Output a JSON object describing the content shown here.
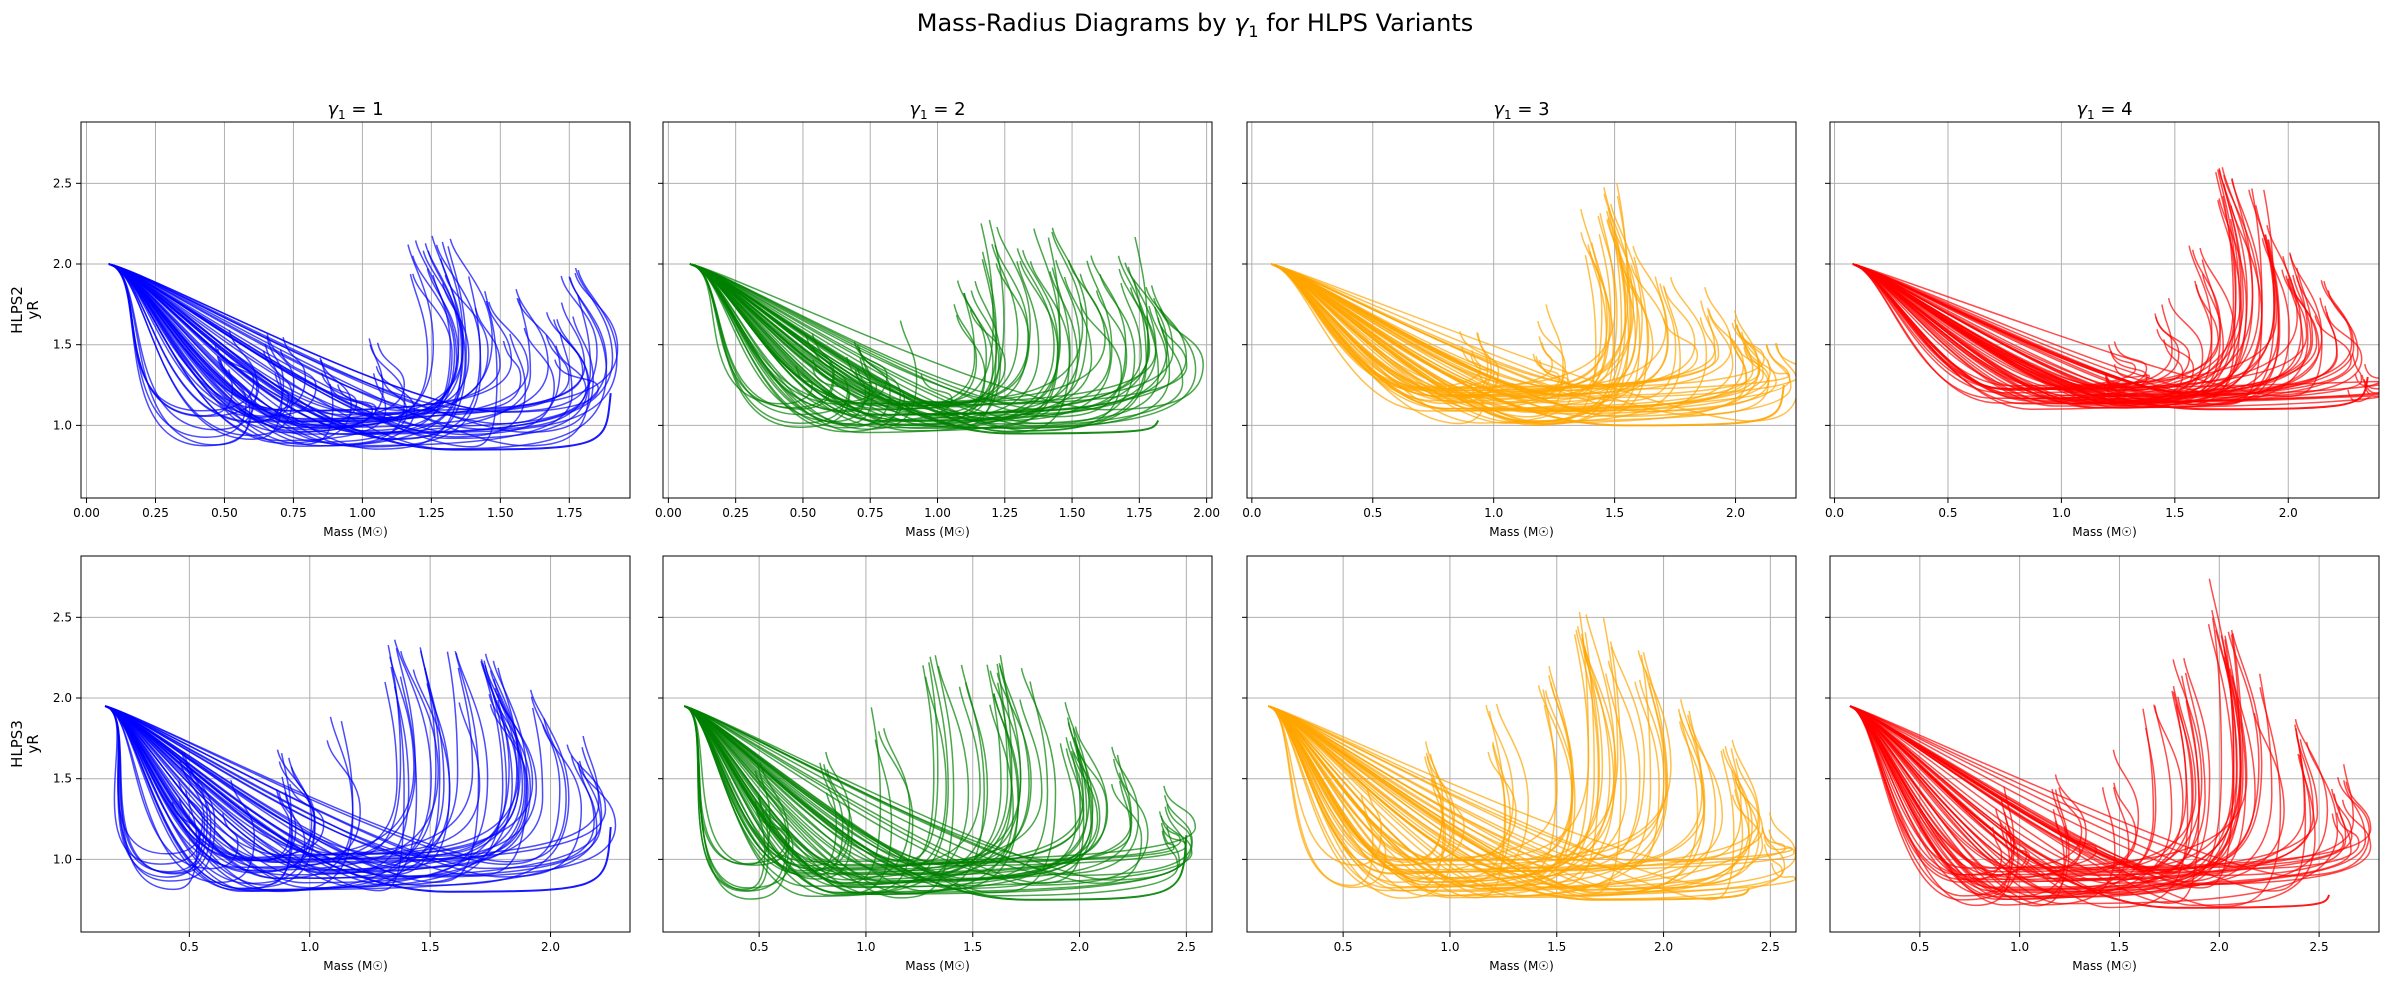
{
  "figure": {
    "suptitle_prefix": "Mass-Radius Diagrams by ",
    "suptitle_symbol": "γ",
    "suptitle_sub": "1",
    "suptitle_suffix": " for HLPS Variants"
  },
  "row_labels": [
    {
      "variant": "HLPS2",
      "ylabel": "yR"
    },
    {
      "variant": "HLPS3",
      "ylabel": "yR"
    }
  ],
  "col_titles": [
    {
      "symbol": "γ",
      "sub": "1",
      "rest": " = 1"
    },
    {
      "symbol": "γ",
      "sub": "1",
      "rest": " = 2"
    },
    {
      "symbol": "γ",
      "sub": "1",
      "rest": " = 3"
    },
    {
      "symbol": "γ",
      "sub": "1",
      "rest": " = 4"
    }
  ],
  "chart_data": [
    {
      "type": "line",
      "variant": "HLPS2",
      "gamma1": 1,
      "xlabel": "Mass (M☉)",
      "ylabel": "yR",
      "xlim": [
        -0.02,
        1.97
      ],
      "ylim": [
        0.55,
        2.88
      ],
      "xticks": [
        0,
        0.25,
        0.5,
        0.75,
        1,
        1.25,
        1.5,
        1.75
      ],
      "xticklabels": [
        "0.00",
        "0.25",
        "0.50",
        "0.75",
        "1.00",
        "1.25",
        "1.50",
        "1.75"
      ],
      "yticks": [
        1,
        1.5,
        2,
        2.5
      ],
      "yticklabels": [
        "1.0",
        "1.5",
        "2.0",
        "2.5"
      ],
      "grid": true,
      "color": "#0000ff",
      "start": [
        0.08,
        2.0
      ],
      "min_radius_range": [
        0.85,
        1.1
      ],
      "peak_masses": [
        0.5,
        0.68,
        0.88,
        1.05,
        1.2,
        1.28,
        1.42,
        1.55,
        1.68,
        1.75
      ],
      "peak_radii": [
        1.65,
        1.57,
        1.55,
        1.6,
        2.2,
        2.2,
        1.95,
        1.85,
        1.75,
        2.0
      ],
      "end_point": [
        1.9,
        1.2
      ]
    },
    {
      "type": "line",
      "variant": "HLPS2",
      "gamma1": 2,
      "xlabel": "Mass (M☉)",
      "ylabel": "yR",
      "xlim": [
        -0.02,
        2.02
      ],
      "ylim": [
        0.55,
        2.88
      ],
      "xticks": [
        0,
        0.25,
        0.5,
        0.75,
        1,
        1.25,
        1.5,
        1.75,
        2
      ],
      "xticklabels": [
        "0.00",
        "0.25",
        "0.50",
        "0.75",
        "1.00",
        "1.25",
        "1.50",
        "1.75",
        "2.00"
      ],
      "yticks": [
        1,
        1.5,
        2,
        2.5
      ],
      "yticklabels": [
        "1.0",
        "1.5",
        "2.0",
        "2.5"
      ],
      "grid": true,
      "color": "#008000",
      "start": [
        0.08,
        2.0
      ],
      "min_radius_range": [
        0.95,
        1.15
      ],
      "peak_masses": [
        0.5,
        0.7,
        0.9,
        1.1,
        1.2,
        1.32,
        1.45,
        1.57,
        1.7,
        1.8
      ],
      "peak_radii": [
        1.6,
        1.6,
        1.65,
        1.95,
        2.3,
        2.3,
        2.25,
        2.1,
        2.2,
        1.9
      ],
      "end_point": [
        1.82,
        1.03
      ]
    },
    {
      "type": "line",
      "variant": "HLPS2",
      "gamma1": 3,
      "xlabel": "Mass (M☉)",
      "ylabel": "yR",
      "xlim": [
        -0.02,
        2.25
      ],
      "ylim": [
        0.55,
        2.88
      ],
      "xticks": [
        0,
        0.5,
        1,
        1.5,
        2
      ],
      "xticklabels": [
        "0.0",
        "0.5",
        "1.0",
        "1.5",
        "2.0"
      ],
      "yticks": [
        1,
        1.5,
        2,
        2.5
      ],
      "yticklabels": [
        "1.0",
        "1.5",
        "2.0",
        "2.5"
      ],
      "grid": true,
      "color": "#ffa500",
      "start": [
        0.08,
        2.0
      ],
      "min_radius_range": [
        1.0,
        1.25
      ],
      "peak_masses": [
        0.9,
        1.2,
        1.4,
        1.48,
        1.55,
        1.7,
        1.85,
        2.0,
        2.15
      ],
      "peak_radii": [
        1.6,
        1.75,
        2.4,
        2.5,
        2.3,
        2.0,
        1.9,
        1.8,
        1.7
      ],
      "end_point": [
        2.2,
        1.25
      ]
    },
    {
      "type": "line",
      "variant": "HLPS2",
      "gamma1": 4,
      "xlabel": "Mass (M☉)",
      "ylabel": "yR",
      "xlim": [
        -0.02,
        2.4
      ],
      "ylim": [
        0.55,
        2.88
      ],
      "xticks": [
        0,
        0.5,
        1,
        1.5,
        2
      ],
      "xticklabels": [
        "0.0",
        "0.5",
        "1.0",
        "1.5",
        "2.0"
      ],
      "yticks": [
        1,
        1.5,
        2,
        2.5
      ],
      "yticklabels": [
        "1.0",
        "1.5",
        "2.0",
        "2.5"
      ],
      "grid": true,
      "color": "#ff0000",
      "start": [
        0.08,
        2.0
      ],
      "min_radius_range": [
        1.1,
        1.25
      ],
      "peak_masses": [
        1.2,
        1.45,
        1.6,
        1.72,
        1.8,
        1.88,
        2.0,
        2.15,
        2.3
      ],
      "peak_radii": [
        1.6,
        1.8,
        2.2,
        2.6,
        2.7,
        2.5,
        2.2,
        1.9,
        1.45
      ],
      "end_point": [
        2.35,
        1.3
      ]
    },
    {
      "type": "line",
      "variant": "HLPS3",
      "gamma1": 1,
      "xlabel": "Mass (M☉)",
      "ylabel": "yR",
      "xlim": [
        0.05,
        2.33
      ],
      "ylim": [
        0.55,
        2.88
      ],
      "xticks": [
        0.5,
        1,
        1.5,
        2
      ],
      "xticklabels": [
        "0.5",
        "1.0",
        "1.5",
        "2.0"
      ],
      "yticks": [
        1,
        1.5,
        2,
        2.5
      ],
      "yticklabels": [
        "1.0",
        "1.5",
        "2.0",
        "2.5"
      ],
      "grid": true,
      "color": "#0000ff",
      "start": [
        0.15,
        1.95
      ],
      "min_radius_range": [
        0.8,
        1.05
      ],
      "peak_masses": [
        0.45,
        0.65,
        0.9,
        1.1,
        1.35,
        1.45,
        1.6,
        1.75,
        1.95,
        2.1
      ],
      "peak_radii": [
        1.7,
        1.6,
        1.7,
        1.95,
        2.4,
        2.35,
        2.3,
        2.3,
        2.1,
        1.8
      ],
      "end_point": [
        2.25,
        1.2
      ]
    },
    {
      "type": "line",
      "variant": "HLPS3",
      "gamma1": 2,
      "xlabel": "Mass (M☉)",
      "ylabel": "yR",
      "xlim": [
        0.05,
        2.62
      ],
      "ylim": [
        0.55,
        2.88
      ],
      "xticks": [
        0.5,
        1,
        1.5,
        2,
        2.5
      ],
      "xticklabels": [
        "0.5",
        "1.0",
        "1.5",
        "2.0",
        "2.5"
      ],
      "yticks": [
        1,
        1.5,
        2,
        2.5
      ],
      "yticklabels": [
        "1.0",
        "1.5",
        "2.0",
        "2.5"
      ],
      "grid": true,
      "color": "#008000",
      "start": [
        0.15,
        1.95
      ],
      "min_radius_range": [
        0.75,
        1.0
      ],
      "peak_masses": [
        0.5,
        0.8,
        1.05,
        1.3,
        1.45,
        1.6,
        1.75,
        1.95,
        2.15,
        2.4
      ],
      "peak_radii": [
        1.65,
        1.7,
        2.0,
        2.45,
        2.4,
        2.3,
        2.3,
        2.0,
        1.7,
        1.5
      ],
      "end_point": [
        2.5,
        1.15
      ]
    },
    {
      "type": "line",
      "variant": "HLPS3",
      "gamma1": 3,
      "xlabel": "Mass (M☉)",
      "ylabel": "yR",
      "xlim": [
        0.05,
        2.62
      ],
      "ylim": [
        0.55,
        2.88
      ],
      "xticks": [
        0.5,
        1,
        1.5,
        2,
        2.5
      ],
      "xticklabels": [
        "0.5",
        "1.0",
        "1.5",
        "2.0",
        "2.5"
      ],
      "yticks": [
        1,
        1.5,
        2,
        2.5
      ],
      "yticklabels": [
        "1.0",
        "1.5",
        "2.0",
        "2.5"
      ],
      "grid": true,
      "color": "#ffa500",
      "start": [
        0.15,
        1.95
      ],
      "min_radius_range": [
        0.75,
        1.0
      ],
      "peak_masses": [
        0.6,
        0.9,
        1.2,
        1.45,
        1.6,
        1.75,
        1.9,
        2.1,
        2.3,
        2.5
      ],
      "peak_radii": [
        1.6,
        1.75,
        2.0,
        2.2,
        2.6,
        2.5,
        2.3,
        2.0,
        1.75,
        1.3
      ],
      "end_point": [
        2.4,
        0.82
      ]
    },
    {
      "type": "line",
      "variant": "HLPS3",
      "gamma1": 4,
      "xlabel": "Mass (M☉)",
      "ylabel": "yR",
      "xlim": [
        0.05,
        2.8
      ],
      "ylim": [
        0.55,
        2.88
      ],
      "xticks": [
        0.5,
        1,
        1.5,
        2,
        2.5
      ],
      "xticklabels": [
        "0.5",
        "1.0",
        "1.5",
        "2.0",
        "2.5"
      ],
      "yticks": [
        1,
        1.5,
        2,
        2.5
      ],
      "yticklabels": [
        "1.0",
        "1.5",
        "2.0",
        "2.5"
      ],
      "grid": true,
      "color": "#ff0000",
      "start": [
        0.15,
        1.95
      ],
      "min_radius_range": [
        0.7,
        0.95
      ],
      "peak_masses": [
        0.9,
        1.2,
        1.45,
        1.65,
        1.8,
        1.95,
        2.05,
        2.2,
        2.4,
        2.6
      ],
      "peak_radii": [
        1.5,
        1.55,
        1.7,
        2.0,
        2.3,
        2.75,
        2.45,
        2.2,
        1.9,
        1.6
      ],
      "end_point": [
        2.55,
        0.78
      ]
    }
  ]
}
